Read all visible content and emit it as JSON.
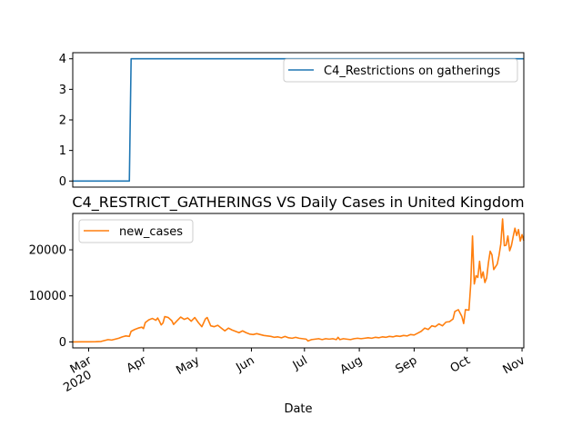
{
  "chart_data": [
    {
      "type": "line",
      "title": "",
      "xlabel": "",
      "ylabel": "",
      "x_range": [
        "2020-02-21",
        "2020-11-02"
      ],
      "ylim": [
        -0.2,
        4.2
      ],
      "yticks": [
        0,
        1,
        2,
        3,
        4
      ],
      "grid": false,
      "legend_position": "upper right",
      "series": [
        {
          "name": "C4_Restrictions on gatherings",
          "color": "#1f77b4",
          "points": [
            [
              "2020-02-21",
              0
            ],
            [
              "2020-03-24",
              0
            ],
            [
              "2020-03-25",
              4
            ],
            [
              "2020-11-02",
              4
            ]
          ]
        }
      ]
    },
    {
      "type": "line",
      "title": "C4_RESTRICT_GATHERINGS VS Daily Cases in United Kingdom",
      "xlabel": "Date",
      "ylabel": "",
      "x_range": [
        "2020-02-21",
        "2020-11-02"
      ],
      "ylim": [
        -1300,
        27900
      ],
      "yticks": [
        0,
        10000,
        20000
      ],
      "grid": false,
      "legend_position": "upper left",
      "x_tick_labels": [
        {
          "date": "2020-03-01",
          "text": "Mar",
          "sub": "2020"
        },
        {
          "date": "2020-04-01",
          "text": "Apr",
          "sub": ""
        },
        {
          "date": "2020-05-01",
          "text": "May",
          "sub": ""
        },
        {
          "date": "2020-06-01",
          "text": "Jun",
          "sub": ""
        },
        {
          "date": "2020-07-01",
          "text": "Jul",
          "sub": ""
        },
        {
          "date": "2020-08-01",
          "text": "Aug",
          "sub": ""
        },
        {
          "date": "2020-09-01",
          "text": "Sep",
          "sub": ""
        },
        {
          "date": "2020-10-01",
          "text": "Oct",
          "sub": ""
        },
        {
          "date": "2020-11-01",
          "text": "Nov",
          "sub": ""
        }
      ],
      "series": [
        {
          "name": "new_cases",
          "color": "#ff7f0e",
          "points": [
            [
              "2020-02-21",
              0
            ],
            [
              "2020-02-26",
              10
            ],
            [
              "2020-03-01",
              20
            ],
            [
              "2020-03-05",
              50
            ],
            [
              "2020-03-08",
              100
            ],
            [
              "2020-03-10",
              300
            ],
            [
              "2020-03-12",
              500
            ],
            [
              "2020-03-14",
              400
            ],
            [
              "2020-03-16",
              600
            ],
            [
              "2020-03-18",
              800
            ],
            [
              "2020-03-20",
              1100
            ],
            [
              "2020-03-22",
              1300
            ],
            [
              "2020-03-24",
              1200
            ],
            [
              "2020-03-25",
              2300
            ],
            [
              "2020-03-27",
              2700
            ],
            [
              "2020-03-29",
              3000
            ],
            [
              "2020-03-31",
              3200
            ],
            [
              "2020-04-01",
              2900
            ],
            [
              "2020-04-02",
              4200
            ],
            [
              "2020-04-04",
              4800
            ],
            [
              "2020-04-06",
              5100
            ],
            [
              "2020-04-08",
              4700
            ],
            [
              "2020-04-09",
              5200
            ],
            [
              "2020-04-10",
              4500
            ],
            [
              "2020-04-11",
              3700
            ],
            [
              "2020-04-12",
              4100
            ],
            [
              "2020-04-13",
              5500
            ],
            [
              "2020-04-15",
              5300
            ],
            [
              "2020-04-17",
              4600
            ],
            [
              "2020-04-18",
              3800
            ],
            [
              "2020-04-20",
              4600
            ],
            [
              "2020-04-22",
              5400
            ],
            [
              "2020-04-24",
              4900
            ],
            [
              "2020-04-26",
              5200
            ],
            [
              "2020-04-28",
              4500
            ],
            [
              "2020-04-30",
              5300
            ],
            [
              "2020-05-02",
              4200
            ],
            [
              "2020-05-04",
              3300
            ],
            [
              "2020-05-06",
              5000
            ],
            [
              "2020-05-07",
              5300
            ],
            [
              "2020-05-09",
              3500
            ],
            [
              "2020-05-11",
              3300
            ],
            [
              "2020-05-13",
              3600
            ],
            [
              "2020-05-15",
              3000
            ],
            [
              "2020-05-17",
              2400
            ],
            [
              "2020-05-19",
              3000
            ],
            [
              "2020-05-21",
              2600
            ],
            [
              "2020-05-23",
              2300
            ],
            [
              "2020-05-25",
              2000
            ],
            [
              "2020-05-27",
              2400
            ],
            [
              "2020-05-29",
              2000
            ],
            [
              "2020-05-31",
              1700
            ],
            [
              "2020-06-02",
              1600
            ],
            [
              "2020-06-04",
              1800
            ],
            [
              "2020-06-06",
              1600
            ],
            [
              "2020-06-08",
              1400
            ],
            [
              "2020-06-10",
              1300
            ],
            [
              "2020-06-12",
              1200
            ],
            [
              "2020-06-14",
              1000
            ],
            [
              "2020-06-16",
              1100
            ],
            [
              "2020-06-18",
              900
            ],
            [
              "2020-06-20",
              1200
            ],
            [
              "2020-06-22",
              900
            ],
            [
              "2020-06-24",
              800
            ],
            [
              "2020-06-26",
              1000
            ],
            [
              "2020-06-28",
              800
            ],
            [
              "2020-06-30",
              700
            ],
            [
              "2020-07-02",
              600
            ],
            [
              "2020-07-03",
              200
            ],
            [
              "2020-07-05",
              500
            ],
            [
              "2020-07-07",
              600
            ],
            [
              "2020-07-09",
              700
            ],
            [
              "2020-07-11",
              500
            ],
            [
              "2020-07-13",
              700
            ],
            [
              "2020-07-15",
              600
            ],
            [
              "2020-07-17",
              700
            ],
            [
              "2020-07-19",
              500
            ],
            [
              "2020-07-20",
              1000
            ],
            [
              "2020-07-21",
              500
            ],
            [
              "2020-07-23",
              700
            ],
            [
              "2020-07-25",
              600
            ],
            [
              "2020-07-27",
              500
            ],
            [
              "2020-07-29",
              700
            ],
            [
              "2020-07-31",
              800
            ],
            [
              "2020-08-02",
              700
            ],
            [
              "2020-08-04",
              800
            ],
            [
              "2020-08-06",
              900
            ],
            [
              "2020-08-08",
              800
            ],
            [
              "2020-08-10",
              1000
            ],
            [
              "2020-08-12",
              900
            ],
            [
              "2020-08-14",
              1100
            ],
            [
              "2020-08-16",
              1000
            ],
            [
              "2020-08-18",
              1200
            ],
            [
              "2020-08-20",
              1100
            ],
            [
              "2020-08-22",
              1300
            ],
            [
              "2020-08-24",
              1200
            ],
            [
              "2020-08-26",
              1400
            ],
            [
              "2020-08-28",
              1300
            ],
            [
              "2020-08-30",
              1600
            ],
            [
              "2020-09-01",
              1500
            ],
            [
              "2020-09-03",
              1900
            ],
            [
              "2020-09-05",
              2300
            ],
            [
              "2020-09-07",
              3000
            ],
            [
              "2020-09-09",
              2700
            ],
            [
              "2020-09-11",
              3500
            ],
            [
              "2020-09-13",
              3300
            ],
            [
              "2020-09-15",
              3900
            ],
            [
              "2020-09-17",
              3500
            ],
            [
              "2020-09-19",
              4300
            ],
            [
              "2020-09-21",
              4400
            ],
            [
              "2020-09-23",
              5000
            ],
            [
              "2020-09-24",
              6600
            ],
            [
              "2020-09-26",
              7000
            ],
            [
              "2020-09-28",
              5500
            ],
            [
              "2020-09-29",
              4000
            ],
            [
              "2020-09-30",
              7000
            ],
            [
              "2020-10-02",
              6900
            ],
            [
              "2020-10-03",
              12600
            ],
            [
              "2020-10-04",
              23000
            ],
            [
              "2020-10-05",
              12600
            ],
            [
              "2020-10-06",
              14400
            ],
            [
              "2020-10-07",
              14000
            ],
            [
              "2020-10-08",
              17500
            ],
            [
              "2020-10-09",
              13900
            ],
            [
              "2020-10-10",
              15200
            ],
            [
              "2020-10-11",
              12900
            ],
            [
              "2020-10-12",
              13900
            ],
            [
              "2020-10-13",
              17200
            ],
            [
              "2020-10-14",
              19700
            ],
            [
              "2020-10-15",
              18900
            ],
            [
              "2020-10-16",
              15700
            ],
            [
              "2020-10-18",
              16900
            ],
            [
              "2020-10-19",
              18800
            ],
            [
              "2020-10-20",
              21300
            ],
            [
              "2020-10-21",
              26700
            ],
            [
              "2020-10-22",
              20900
            ],
            [
              "2020-10-23",
              21000
            ],
            [
              "2020-10-24",
              23000
            ],
            [
              "2020-10-25",
              19800
            ],
            [
              "2020-10-26",
              20900
            ],
            [
              "2020-10-27",
              22900
            ],
            [
              "2020-10-28",
              24700
            ],
            [
              "2020-10-29",
              23100
            ],
            [
              "2020-10-30",
              24400
            ],
            [
              "2020-10-31",
              21900
            ],
            [
              "2020-11-01",
              23300
            ],
            [
              "2020-11-02",
              22000
            ]
          ]
        }
      ]
    }
  ]
}
